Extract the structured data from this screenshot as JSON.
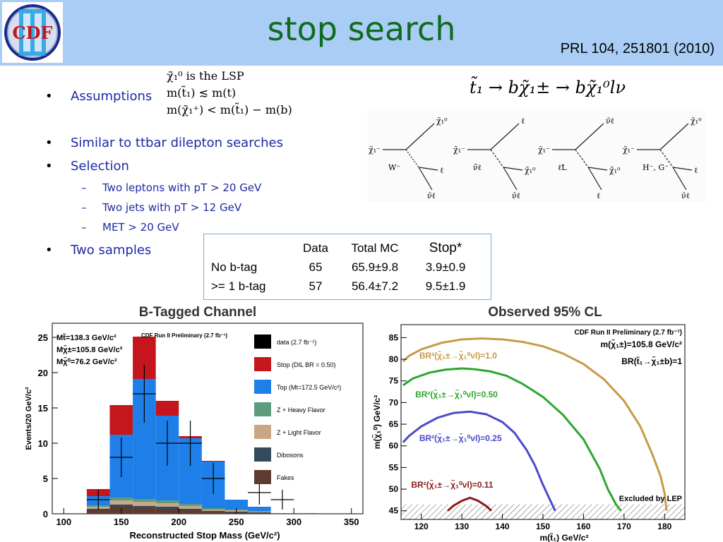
{
  "header": {
    "title": "stop search",
    "reference": "PRL 104, 251801 (2010)",
    "logo_text": "CDF",
    "logo_numeral": "II",
    "background_color": "#a9cdf4",
    "title_color": "#0f6b1f"
  },
  "bullets": [
    {
      "level": 1,
      "text": "Assumptions"
    },
    {
      "level": 1,
      "text": "Similar to ttbar dilepton searches"
    },
    {
      "level": 1,
      "text": "Selection"
    },
    {
      "level": 2,
      "text": "Two leptons with pT > 20 GeV"
    },
    {
      "level": 2,
      "text": "Two jets with pT > 12 GeV"
    },
    {
      "level": 2,
      "text": "MET > 20 GeV"
    },
    {
      "level": 1,
      "text": "Two samples"
    }
  ],
  "assumptions": [
    "χ̃₁⁰ is the LSP",
    "m(t̃₁) ≲ m(t)",
    "m(χ̃₁⁺) < m(t̃₁) − m(b)"
  ],
  "decay_chain": "t̃₁ → bχ̃₁± → bχ̃₁⁰lν",
  "feynman_diagrams": [
    {
      "in": "χ̃₁⁻",
      "mediator": "W⁻",
      "out_top": "χ̃₁⁰",
      "out_mid": "ℓ",
      "out_bot": "ν̄ℓ"
    },
    {
      "in": "χ̃₁⁻",
      "mediator": "ν̃ℓ",
      "out_top": "ℓ",
      "out_mid": "χ̃₁⁰",
      "out_bot": "ν̄ℓ"
    },
    {
      "in": "χ̃₁⁻",
      "mediator": "ℓ̃L",
      "out_top": "ν̄ℓ",
      "out_mid": "χ̃₁⁰",
      "out_bot": "ℓ"
    },
    {
      "in": "χ̃₁⁻",
      "mediator": "H⁻, G⁻",
      "out_top": "χ̃₁⁰",
      "out_mid": "ℓ",
      "out_bot": "ν̄ℓ"
    }
  ],
  "samples_table": {
    "headers": [
      "",
      "Data",
      "Total MC",
      "Stop*"
    ],
    "rows": [
      [
        "No b-tag",
        "65",
        "65.9±9.8",
        "3.9±0.9"
      ],
      [
        ">= 1 b-tag",
        "57",
        "56.4±7.2",
        "9.5±1.9"
      ]
    ]
  },
  "chart_data": [
    {
      "type": "bar",
      "title": "B-Tagged Channel",
      "xlabel": "Reconstructed Stop Mass (GeV/c²)",
      "ylabel": "Events/20 GeV/c²",
      "xlim": [
        90,
        360
      ],
      "ylim": [
        0,
        27
      ],
      "xticks": [
        "100",
        "150",
        "200",
        "250",
        "300",
        "350"
      ],
      "yticks": [
        "0",
        "5",
        "10",
        "15",
        "20",
        "25"
      ],
      "bin_edges": [
        120,
        140,
        160,
        180,
        200,
        220,
        240,
        260,
        280,
        300,
        320
      ],
      "info_lines": [
        "Mt̃=138.3 GeV/c²",
        "Mχ̃±=105.8 GeV/c²",
        "Mχ̃⁰=76.2 GeV/c²"
      ],
      "preliminary": "CDF Run II Preliminary (2.7 fb⁻¹)",
      "legend_position": "right",
      "legend": [
        {
          "name": "data (2.7 fb⁻¹)",
          "color": "#000000"
        },
        {
          "name": "Stop (DIL BR = 0.50)",
          "color": "#c4161c"
        },
        {
          "name": "Top (Mt=172.5 GeV/c²)",
          "color": "#1e7fe8"
        },
        {
          "name": "Z + Heavy Flavor",
          "color": "#5b9c7c"
        },
        {
          "name": "Z + Light Flavor",
          "color": "#c9a786"
        },
        {
          "name": "Dibosons",
          "color": "#354a5a"
        },
        {
          "name": "Fakes",
          "color": "#5e3b30"
        }
      ],
      "series": [
        {
          "name": "Fakes",
          "color": "#5e3b30",
          "values": [
            0.5,
            1.0,
            0.8,
            0.7,
            0.5,
            0.3,
            0.2,
            0.1,
            0.0,
            0.0
          ]
        },
        {
          "name": "Dibosons",
          "color": "#354a5a",
          "values": [
            0.2,
            0.3,
            0.3,
            0.3,
            0.2,
            0.1,
            0.1,
            0.1,
            0.0,
            0.0
          ]
        },
        {
          "name": "Z + Light Flavor",
          "color": "#c9a786",
          "values": [
            0.3,
            0.6,
            0.6,
            0.5,
            0.4,
            0.2,
            0.2,
            0.1,
            0.0,
            0.0
          ]
        },
        {
          "name": "Z + Heavy Flavor",
          "color": "#5b9c7c",
          "values": [
            0.2,
            0.4,
            0.4,
            0.4,
            0.3,
            0.2,
            0.1,
            0.1,
            0.0,
            0.0
          ]
        },
        {
          "name": "Top",
          "color": "#1e7fe8",
          "values": [
            1.3,
            8.9,
            17.0,
            12.0,
            9.3,
            6.6,
            1.4,
            0.6,
            0.1,
            0.1
          ]
        },
        {
          "name": "Stop",
          "color": "#c4161c",
          "values": [
            1.0,
            4.2,
            6.0,
            2.1,
            0.3,
            0.1,
            0.0,
            0.0,
            0.0,
            0.0
          ]
        }
      ],
      "data_points": [
        {
          "x": 130,
          "y": 2,
          "err": 1.4
        },
        {
          "x": 150,
          "y": 8,
          "err": 2.8
        },
        {
          "x": 170,
          "y": 17,
          "err": 4.1
        },
        {
          "x": 190,
          "y": 10,
          "err": 3.2
        },
        {
          "x": 210,
          "y": 10,
          "err": 3.2
        },
        {
          "x": 230,
          "y": 5,
          "err": 2.2
        },
        {
          "x": 250,
          "y": 0,
          "err": 0
        },
        {
          "x": 270,
          "y": 3,
          "err": 1.7
        },
        {
          "x": 290,
          "y": 2,
          "err": 1.4
        }
      ]
    },
    {
      "type": "line",
      "title": "Observed 95% CL",
      "xlabel": "m(t̃₁) GeV/c²",
      "ylabel": "m(χ̃₁⁰) GeV/c²",
      "xlim": [
        115,
        185
      ],
      "ylim": [
        43,
        88
      ],
      "xticks": [
        "120",
        "130",
        "140",
        "150",
        "160",
        "170",
        "180"
      ],
      "yticks": [
        "45",
        "50",
        "55",
        "60",
        "65",
        "70",
        "75",
        "80",
        "85"
      ],
      "preliminary": "CDF Run II Preliminary (2.7 fb⁻¹)",
      "info_lines": [
        "m(χ̃₁±)=105.8 GeV/c²",
        "BR(t̃₁→χ̃₁±b)=1"
      ],
      "excluded_band": {
        "label": "Excluded by LEP",
        "y_max": 46.5
      },
      "series": [
        {
          "name": "BR²(χ̃₁±→χ̃₁⁰νl)=1.0",
          "color": "#c79a48",
          "x": [
            115.5,
            117,
            120,
            125,
            130,
            135,
            140,
            145,
            150,
            155,
            160,
            165,
            170,
            174,
            177,
            179,
            180,
            180.5
          ],
          "y": [
            79.5,
            80.8,
            82.3,
            83.8,
            84.6,
            84.8,
            84.6,
            84.0,
            83.0,
            81.3,
            78.9,
            75.4,
            70.4,
            64.5,
            58.0,
            53.0,
            49.0,
            45.0
          ]
        },
        {
          "name": "BR²(χ̃₁±→χ̃₁⁰νl)=0.50",
          "color": "#2ea52e",
          "x": [
            115.5,
            118,
            122,
            126,
            130,
            133,
            137,
            141,
            145,
            150,
            155,
            160,
            164,
            166,
            168,
            169.2
          ],
          "y": [
            74.0,
            75.6,
            76.9,
            77.6,
            77.9,
            77.7,
            77.2,
            76.2,
            74.3,
            71.3,
            67.1,
            61.5,
            54.7,
            50.0,
            46.5,
            45.0
          ]
        },
        {
          "name": "BR²(χ̃₁±→χ̃₁⁰νl)=0.25",
          "color": "#4a4ac8",
          "x": [
            115.5,
            117,
            120,
            124,
            128,
            132,
            136,
            140,
            143,
            146,
            148,
            150,
            151.5,
            153
          ],
          "y": [
            60.8,
            62.3,
            64.5,
            66.5,
            67.6,
            67.9,
            67.3,
            65.5,
            63.0,
            59.0,
            55.5,
            51.0,
            48.0,
            45.0
          ]
        },
        {
          "name": "BR²(χ̃₁±→χ̃₁⁰νl)=0.11",
          "color": "#8b1a1a",
          "x": [
            126.5,
            128,
            130,
            132,
            134,
            136,
            137.3
          ],
          "y": [
            45.0,
            46.2,
            47.3,
            48.0,
            47.3,
            46.1,
            45.0
          ]
        }
      ]
    }
  ]
}
